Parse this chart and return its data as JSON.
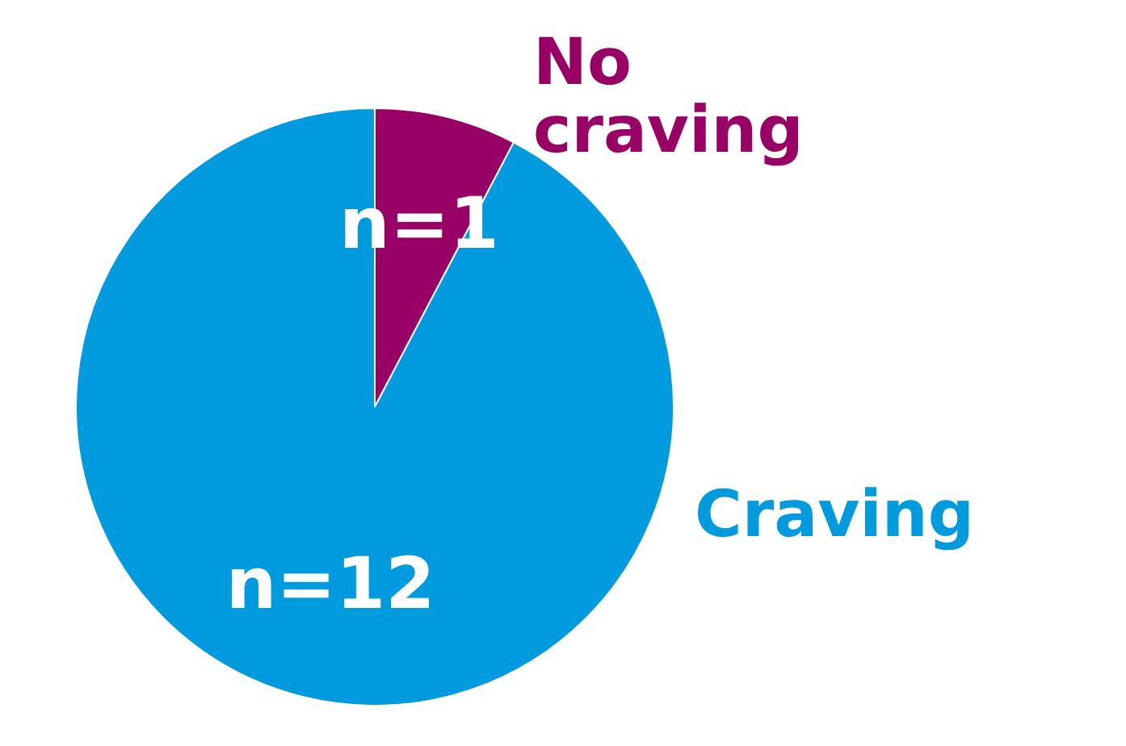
{
  "chart_data": {
    "type": "pie",
    "categories": [
      "No craving",
      "Craving"
    ],
    "values": [
      1,
      12
    ],
    "colors": [
      "#990066",
      "#009ade"
    ],
    "value_labels": [
      "n=1",
      "n=12"
    ]
  }
}
